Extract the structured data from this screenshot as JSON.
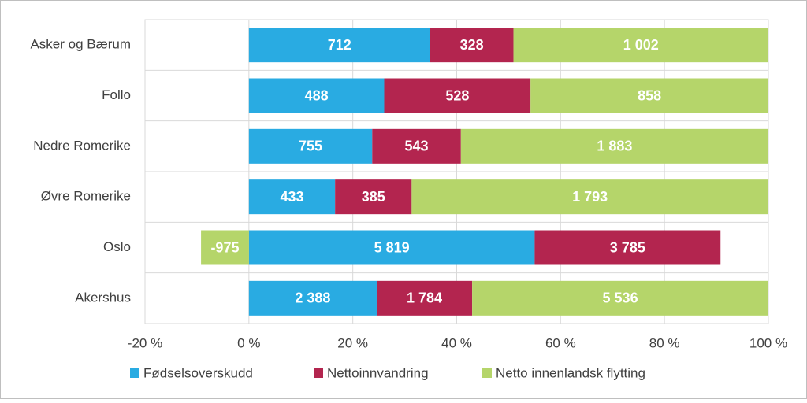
{
  "chart_data": {
    "type": "bar",
    "orientation": "horizontal",
    "stacking": "percent",
    "categories": [
      "Asker og Bærum",
      "Follo",
      "Nedre Romerike",
      "Øvre Romerike",
      "Oslo",
      "Akershus"
    ],
    "series": [
      {
        "name": "Fødselsoverskudd",
        "color": "#29abe2",
        "values": [
          712,
          488,
          755,
          433,
          5819,
          2388
        ],
        "value_labels": [
          "712",
          "488",
          "755",
          "433",
          "5 819",
          "2 388"
        ]
      },
      {
        "name": "Nettoinnvandring",
        "color": "#b3254f",
        "values": [
          328,
          528,
          543,
          385,
          3785,
          1784
        ],
        "value_labels": [
          "328",
          "528",
          "543",
          "385",
          "3 785",
          "1 784"
        ]
      },
      {
        "name": "Netto innenlandsk flytting",
        "color": "#b5d56a",
        "values": [
          1002,
          858,
          1883,
          1793,
          -975,
          5536
        ],
        "value_labels": [
          "1 002",
          "858",
          "1 883",
          "1 793",
          "-975",
          "5 536"
        ]
      }
    ],
    "xlim": [
      -20,
      100
    ],
    "xticks": [
      {
        "value": -20,
        "label": "-20 %"
      },
      {
        "value": 0,
        "label": "0 %"
      },
      {
        "value": 20,
        "label": "20 %"
      },
      {
        "value": 40,
        "label": "40 %"
      },
      {
        "value": 60,
        "label": "60 %"
      },
      {
        "value": 80,
        "label": "80 %"
      },
      {
        "value": 100,
        "label": "100 %"
      }
    ],
    "legend": "bottom"
  }
}
